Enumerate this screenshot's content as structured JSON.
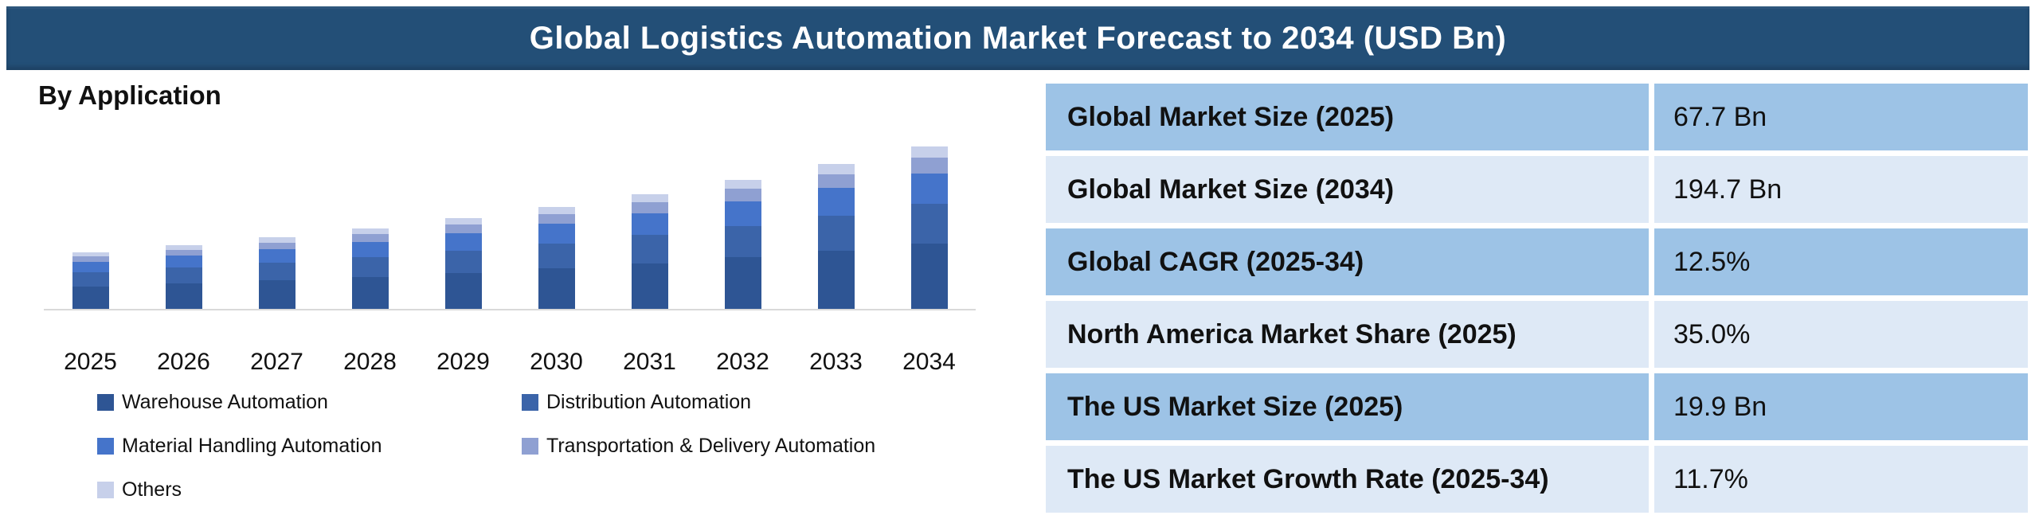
{
  "header": {
    "title": "Global Logistics Automation Market Forecast to 2034 (USD Bn)",
    "bg_color": "#234F77",
    "text_color": "#FFFFFF"
  },
  "chart_data": {
    "type": "bar",
    "stacked": true,
    "title": "By Application",
    "units": "USD Bn",
    "categories": [
      "2025",
      "2026",
      "2027",
      "2028",
      "2029",
      "2030",
      "2031",
      "2032",
      "2033",
      "2034"
    ],
    "series": [
      {
        "name": "Warehouse Automation",
        "color": "#2E5594",
        "values": [
          27.1,
          30.5,
          34.3,
          38.6,
          43.4,
          48.8,
          54.9,
          61.8,
          69.5,
          77.9
        ]
      },
      {
        "name": "Distribution Automation",
        "color": "#3B64A9",
        "values": [
          16.6,
          18.7,
          21.0,
          23.6,
          26.6,
          29.9,
          33.6,
          37.9,
          42.6,
          47.7
        ]
      },
      {
        "name": "Material Handling Automation",
        "color": "#4574CA",
        "values": [
          12.9,
          14.5,
          16.3,
          18.3,
          20.6,
          23.2,
          26.1,
          29.4,
          33.0,
          37.0
        ]
      },
      {
        "name": "Transportation & Delivery Automation",
        "color": "#8FA0D2",
        "values": [
          6.4,
          7.2,
          8.1,
          9.2,
          10.3,
          11.6,
          13.0,
          14.7,
          16.5,
          18.5
        ]
      },
      {
        "name": "Others",
        "color": "#C7D0EA",
        "values": [
          4.7,
          5.3,
          6.0,
          6.7,
          7.6,
          8.5,
          9.6,
          10.8,
          12.2,
          13.6
        ]
      }
    ],
    "totals": [
      67.7,
      76.2,
      85.7,
      96.4,
      108.5,
      122.0,
      137.3,
      154.5,
      173.8,
      194.7
    ],
    "xlabel": "",
    "ylabel": "",
    "y_axis_visible": false,
    "grid": false,
    "legend_position": "bottom",
    "axis_line_color": "#D9D9D9"
  },
  "stats_table": {
    "row_color_dark": "#9DC3E6",
    "row_color_light": "#DEE9F6",
    "rows": [
      {
        "label": "Global Market Size (2025)",
        "value": "67.7 Bn"
      },
      {
        "label": "Global Market Size (2034)",
        "value": "194.7 Bn"
      },
      {
        "label": "Global CAGR (2025-34)",
        "value": "12.5%"
      },
      {
        "label": "North America Market Share (2025)",
        "value": "35.0%"
      },
      {
        "label": "The US Market Size (2025)",
        "value": "19.9 Bn"
      },
      {
        "label": "The US Market Growth Rate (2025-34)",
        "value": "11.7%"
      }
    ]
  }
}
